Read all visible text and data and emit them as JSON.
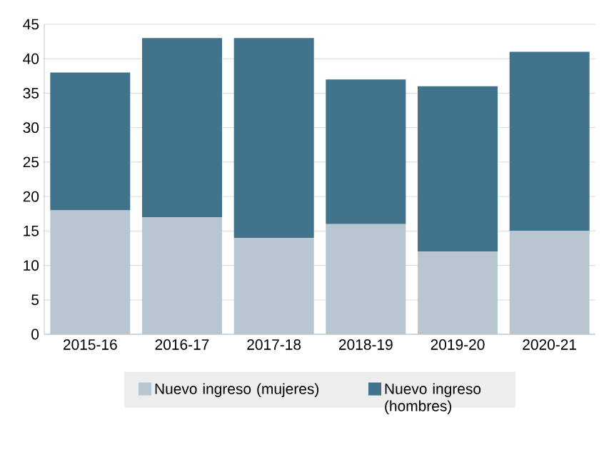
{
  "chart_data": {
    "type": "bar",
    "stacked": true,
    "categories": [
      "2015-16",
      "2016-17",
      "2017-18",
      "2018-19",
      "2019-20",
      "2020-21"
    ],
    "series": [
      {
        "name": "Nuevo ingreso (mujeres)",
        "color": "#b7c6d0",
        "values": [
          18,
          17,
          14,
          16,
          12,
          15
        ]
      },
      {
        "name": "Nuevo ingreso (hombres)",
        "color": "#41738c",
        "values": [
          20,
          26,
          29,
          21,
          24,
          26
        ]
      }
    ],
    "ylim": [
      0,
      45
    ],
    "yticks": [
      0,
      5,
      10,
      15,
      20,
      25,
      30,
      35,
      40,
      45
    ],
    "grid": "y",
    "legend": "bottom"
  }
}
